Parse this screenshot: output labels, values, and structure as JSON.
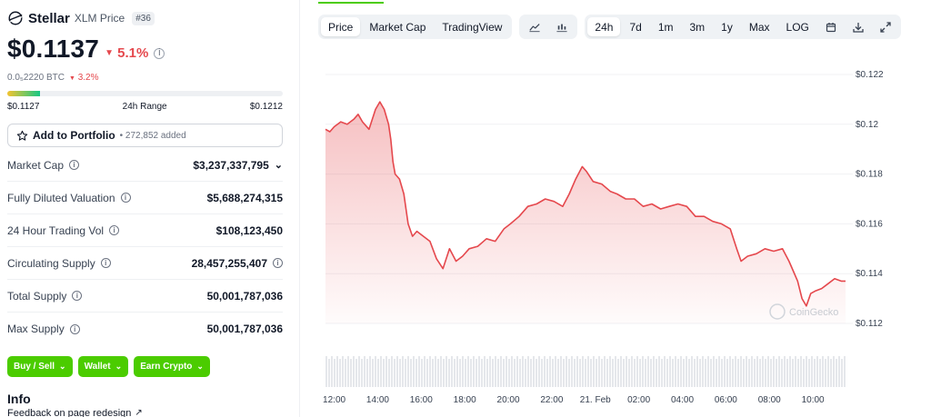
{
  "coin": {
    "name": "Stellar",
    "subtitle": "XLM Price",
    "rank": "#36",
    "price": "$0.1137",
    "change_24h": "5.1%",
    "btc_price": "0.0₅2220 BTC",
    "btc_change": "3.2%"
  },
  "range": {
    "low": "$0.1127",
    "label": "24h Range",
    "high": "$0.1212",
    "position": 0.118
  },
  "portfolio": {
    "label": "Add to Portfolio",
    "count": "• 272,852 added"
  },
  "stats": [
    {
      "label": "Market Cap",
      "value": "$3,237,337,795",
      "extra": "chevron"
    },
    {
      "label": "Fully Diluted Valuation",
      "value": "$5,688,274,315",
      "extra": ""
    },
    {
      "label": "24 Hour Trading Vol",
      "value": "$108,123,450",
      "extra": ""
    },
    {
      "label": "Circulating Supply",
      "value": "28,457,255,407",
      "extra": "info"
    },
    {
      "label": "Total Supply",
      "value": "50,001,787,036",
      "extra": ""
    },
    {
      "label": "Max Supply",
      "value": "50,001,787,036",
      "extra": ""
    }
  ],
  "actions": [
    {
      "label": "Buy / Sell"
    },
    {
      "label": "Wallet"
    },
    {
      "label": "Earn Crypto"
    }
  ],
  "info": {
    "title": "Info",
    "feedback": "Feedback on page redesign"
  },
  "toolbar": {
    "tabs": [
      "Price",
      "Market Cap",
      "TradingView"
    ],
    "active_tab": "Price",
    "chart_types": [
      "line-chart-icon",
      "candlestick-icon"
    ],
    "ranges": [
      "24h",
      "7d",
      "1m",
      "3m",
      "1y",
      "Max",
      "LOG"
    ],
    "active_range": "24h",
    "tools": [
      "calendar-icon",
      "download-icon",
      "expand-icon"
    ]
  },
  "colors": {
    "line": "#e5484d",
    "fill": "#fde2e2",
    "accent_green": "#4bcc00",
    "down": "#e5484d"
  },
  "watermark": "CoinGecko",
  "chart_data": {
    "type": "area",
    "x_tick_labels": [
      "12:00",
      "14:00",
      "16:00",
      "18:00",
      "20:00",
      "22:00",
      "21. Feb",
      "02:00",
      "04:00",
      "06:00",
      "08:00",
      "10:00"
    ],
    "y_tick_labels": [
      "$0.122",
      "$0.12",
      "$0.118",
      "$0.116",
      "$0.114",
      "$0.112"
    ],
    "ylim": [
      0.112,
      0.122
    ],
    "x_hours_range": [
      11.6,
      35.5
    ],
    "series": [
      {
        "points": [
          [
            11.6,
            0.1198
          ],
          [
            11.8,
            0.1197
          ],
          [
            12.0,
            0.1199
          ],
          [
            12.3,
            0.1201
          ],
          [
            12.6,
            0.12
          ],
          [
            12.9,
            0.1202
          ],
          [
            13.1,
            0.1204
          ],
          [
            13.3,
            0.1201
          ],
          [
            13.6,
            0.1198
          ],
          [
            13.9,
            0.1206
          ],
          [
            14.1,
            0.1209
          ],
          [
            14.3,
            0.1206
          ],
          [
            14.5,
            0.12
          ],
          [
            14.6,
            0.1194
          ],
          [
            14.7,
            0.1185
          ],
          [
            14.8,
            0.118
          ],
          [
            15.0,
            0.1178
          ],
          [
            15.2,
            0.1172
          ],
          [
            15.4,
            0.116
          ],
          [
            15.6,
            0.1155
          ],
          [
            15.8,
            0.1157
          ],
          [
            16.1,
            0.1155
          ],
          [
            16.4,
            0.1153
          ],
          [
            16.7,
            0.1146
          ],
          [
            17.0,
            0.1142
          ],
          [
            17.3,
            0.115
          ],
          [
            17.6,
            0.1145
          ],
          [
            17.9,
            0.1147
          ],
          [
            18.2,
            0.115
          ],
          [
            18.6,
            0.1151
          ],
          [
            19.0,
            0.1154
          ],
          [
            19.4,
            0.1153
          ],
          [
            19.8,
            0.1158
          ],
          [
            20.1,
            0.116
          ],
          [
            20.5,
            0.1163
          ],
          [
            20.9,
            0.1167
          ],
          [
            21.3,
            0.1168
          ],
          [
            21.7,
            0.117
          ],
          [
            22.1,
            0.1169
          ],
          [
            22.5,
            0.1167
          ],
          [
            22.8,
            0.1172
          ],
          [
            23.1,
            0.1178
          ],
          [
            23.4,
            0.1183
          ],
          [
            23.6,
            0.1181
          ],
          [
            23.9,
            0.1177
          ],
          [
            24.3,
            0.1176
          ],
          [
            24.7,
            0.1173
          ],
          [
            25.0,
            0.1172
          ],
          [
            25.4,
            0.117
          ],
          [
            25.8,
            0.117
          ],
          [
            26.2,
            0.1167
          ],
          [
            26.6,
            0.1168
          ],
          [
            27.0,
            0.1166
          ],
          [
            27.4,
            0.1167
          ],
          [
            27.8,
            0.1168
          ],
          [
            28.2,
            0.1167
          ],
          [
            28.6,
            0.1163
          ],
          [
            29.0,
            0.1163
          ],
          [
            29.4,
            0.1161
          ],
          [
            29.8,
            0.116
          ],
          [
            30.2,
            0.1158
          ],
          [
            30.5,
            0.115
          ],
          [
            30.7,
            0.1145
          ],
          [
            31.0,
            0.1147
          ],
          [
            31.4,
            0.1148
          ],
          [
            31.8,
            0.115
          ],
          [
            32.2,
            0.1149
          ],
          [
            32.6,
            0.115
          ],
          [
            32.9,
            0.1145
          ],
          [
            33.1,
            0.1141
          ],
          [
            33.3,
            0.1137
          ],
          [
            33.5,
            0.113
          ],
          [
            33.7,
            0.1127
          ],
          [
            33.9,
            0.1132
          ],
          [
            34.1,
            0.1133
          ],
          [
            34.4,
            0.1134
          ],
          [
            34.7,
            0.1136
          ],
          [
            35.0,
            0.1138
          ],
          [
            35.3,
            0.1137
          ],
          [
            35.5,
            0.1137
          ]
        ]
      }
    ],
    "volume": "relative bars, roughly uniform",
    "grid": true
  }
}
